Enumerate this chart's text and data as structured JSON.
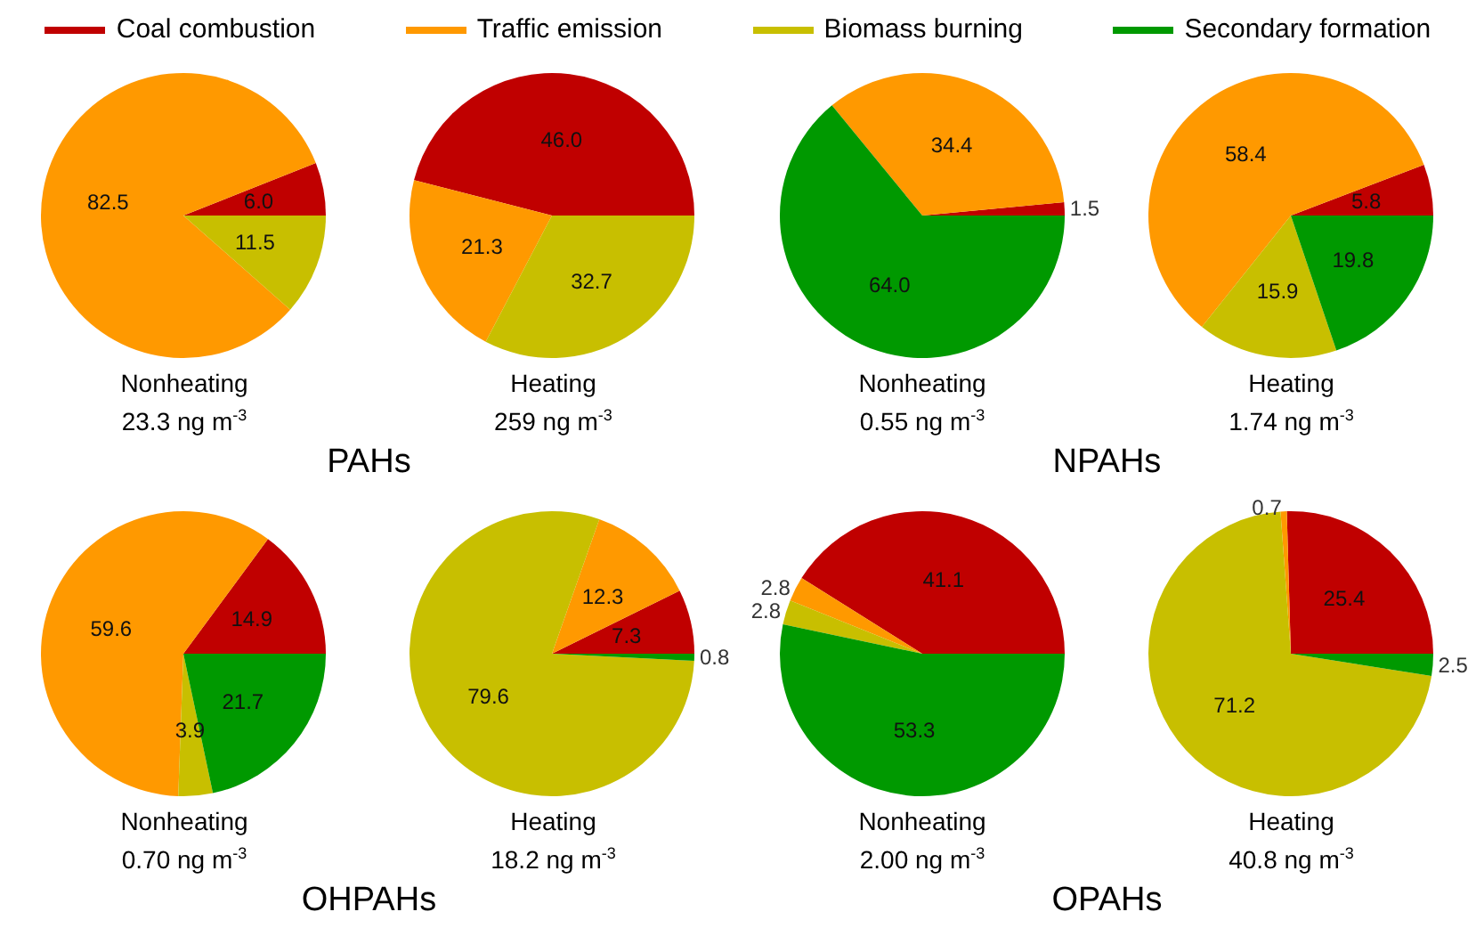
{
  "chart_data": [
    {
      "type": "pie",
      "title": "Nonheating",
      "subtitle": "23.3 ng m$^{-3}$",
      "categories": [
        "Coal combustion",
        "Traffic emission",
        "Biomass burning",
        "Secondary formation"
      ],
      "values": [
        6.0,
        82.5,
        11.5,
        null
      ],
      "colors": [
        "#c00000",
        "#ff9900",
        "#c8bf00",
        "#009900"
      ],
      "value_labels": [
        "6.0",
        "82.5",
        "11.5",
        null
      ],
      "legend": "top"
    },
    {
      "type": "pie",
      "title": "Heating",
      "subtitle": "259 ng m$^{-3}$",
      "categories": [
        null,
        null,
        null
      ],
      "values": [
        46.0,
        21.3,
        32.7
      ],
      "colors": [
        "#c00000",
        "#ff9900",
        "#c8bf00"
      ],
      "value_labels": [
        "46.0",
        "21.3",
        "32.7"
      ],
      "annotations": [
        "PAHs"
      ]
    },
    {
      "type": "pie",
      "title": "Nonheating",
      "subtitle": "0.55 ng m$^{-3}$",
      "categories": [
        null,
        null,
        null
      ],
      "values": [
        1.5,
        34.4,
        64.0
      ],
      "colors": [
        "#c00000",
        "#ff9900",
        "#009900"
      ],
      "value_labels": [
        "1.5",
        "34.4",
        "64.0"
      ]
    },
    {
      "type": "pie",
      "title": "Heating",
      "subtitle": "1.74 ng m$^{-3}$",
      "categories": [
        null,
        null,
        null,
        null
      ],
      "values": [
        5.8,
        58.4,
        15.9,
        19.8
      ],
      "colors": [
        "#c00000",
        "#ff9900",
        "#c8bf00",
        "#009900"
      ],
      "value_labels": [
        "5.8",
        "58.4",
        "15.9",
        "19.8"
      ],
      "annotations": [
        "NPAHs"
      ]
    },
    {
      "type": "pie",
      "title": "Nonheating",
      "subtitle": "0.70 ng m$^{-3}$",
      "categories": [
        null,
        null,
        null,
        null
      ],
      "values": [
        14.9,
        59.6,
        3.9,
        21.7
      ],
      "colors": [
        "#c00000",
        "#ff9900",
        "#c8bf00",
        "#009900"
      ],
      "value_labels": [
        "14.9",
        "59.6",
        "3.9",
        "21.7"
      ]
    },
    {
      "type": "pie",
      "title": "Heating",
      "subtitle": "18.2 ng m$^{-3}$",
      "categories": [
        null,
        null,
        null,
        null
      ],
      "values": [
        7.3,
        12.3,
        79.6,
        0.8
      ],
      "colors": [
        "#c00000",
        "#ff9900",
        "#c8bf00",
        "#009900"
      ],
      "value_labels": [
        "7.3",
        "12.3",
        "79.6",
        "0.8"
      ],
      "annotations": [
        "OHPAHs"
      ]
    },
    {
      "type": "pie",
      "title": "Nonheating",
      "subtitle": "2.00 ng m$^{-3}$",
      "categories": [
        null,
        null,
        null,
        null
      ],
      "values": [
        41.1,
        2.8,
        2.8,
        53.3
      ],
      "colors": [
        "#c00000",
        "#ff9900",
        "#c8bf00",
        "#009900"
      ],
      "value_labels": [
        "41.1",
        "2.8",
        "2.8",
        "53.3"
      ]
    },
    {
      "type": "pie",
      "title": "Heating",
      "subtitle": "40.8 ng m$^{-3}$",
      "categories": [
        null,
        null,
        null,
        null
      ],
      "values": [
        25.4,
        0.7,
        71.2,
        2.5
      ],
      "colors": [
        "#c00000",
        "#ff9900",
        "#c8bf00",
        "#009900"
      ],
      "value_labels": [
        "25.4",
        "0.7",
        "71.2",
        "2.5"
      ],
      "annotations": [
        "OPAHs"
      ]
    }
  ]
}
